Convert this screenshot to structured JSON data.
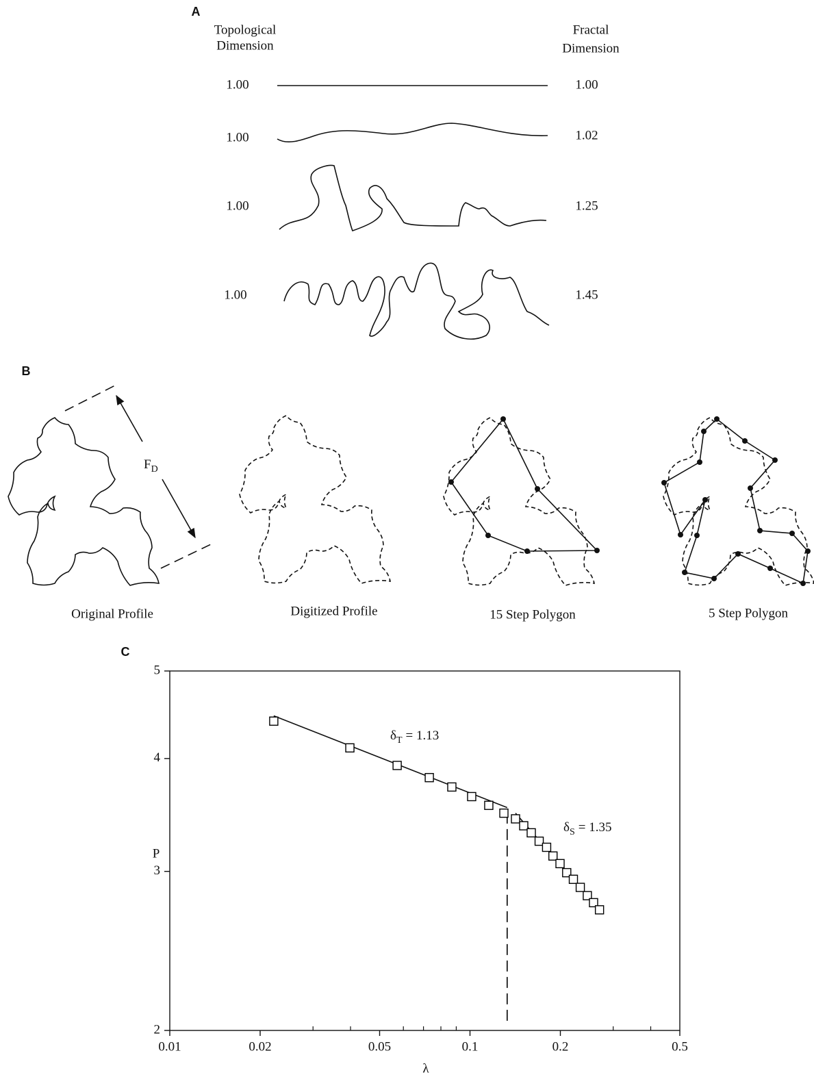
{
  "panel_a": {
    "label": "A",
    "left_header": [
      "Topological",
      "Dimension"
    ],
    "right_header": [
      "Fractal",
      "Dimension"
    ],
    "rows": [
      {
        "topological": "1.00",
        "fractal": "1.00"
      },
      {
        "topological": "1.00",
        "fractal": "1.02"
      },
      {
        "topological": "1.00",
        "fractal": "1.25"
      },
      {
        "topological": "1.00",
        "fractal": "1.45"
      }
    ]
  },
  "panel_b": {
    "label": "B",
    "arrow_label": {
      "text": "F",
      "sub": "D"
    },
    "captions": [
      "Original Profile",
      "Digitized Profile",
      "15 Step Polygon",
      "5 Step Polygon"
    ]
  },
  "chart_data": {
    "type": "scatter",
    "panel_label": "C",
    "xlabel": "λ",
    "ylabel": "P",
    "xscale": "log",
    "yscale": "log",
    "xlim": [
      0.01,
      0.5
    ],
    "ylim": [
      2,
      5
    ],
    "xticks": [
      0.01,
      0.02,
      0.05,
      0.1,
      0.2,
      0.5
    ],
    "xminorticks": [
      0.03,
      0.04,
      0.06,
      0.07,
      0.08,
      0.09,
      0.3,
      0.4
    ],
    "yticks": [
      2,
      3,
      4,
      5
    ],
    "marker": "square",
    "color": "#000000",
    "x": [
      0.0222,
      0.0398,
      0.0572,
      0.0732,
      0.087,
      0.1013,
      0.1155,
      0.1297,
      0.1418,
      0.151,
      0.16,
      0.17,
      0.18,
      0.189,
      0.1995,
      0.21,
      0.221,
      0.233,
      0.246,
      0.258,
      0.27
    ],
    "values": [
      4.4,
      4.11,
      3.93,
      3.81,
      3.72,
      3.63,
      3.55,
      3.48,
      3.43,
      3.37,
      3.31,
      3.24,
      3.19,
      3.12,
      3.06,
      2.99,
      2.94,
      2.88,
      2.82,
      2.77,
      2.72
    ],
    "fit_lines": [
      {
        "x": [
          0.0222,
          0.133
        ],
        "y": [
          4.46,
          3.53
        ]
      },
      {
        "x": [
          0.1418,
          0.276
        ],
        "y": [
          3.48,
          2.7
        ]
      }
    ],
    "breakpoint": {
      "x": 0.133,
      "y": [
        2.05,
        3.53
      ]
    },
    "annotations": [
      {
        "symbol": "δ",
        "sub": "T",
        "text": "= 1.13"
      },
      {
        "symbol": "δ",
        "sub": "S",
        "text": "= 1.35"
      }
    ]
  }
}
